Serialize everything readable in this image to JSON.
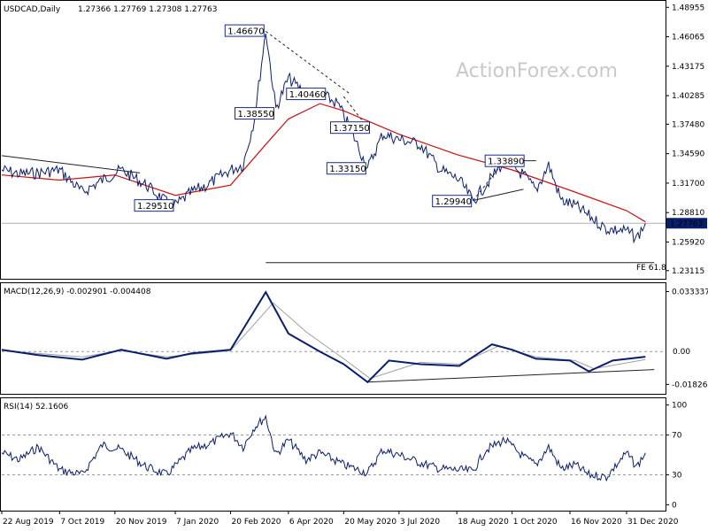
{
  "chart_data": {
    "type": "line",
    "symbol": "USDCAD",
    "timeframe": "Daily",
    "ohlc": {
      "open": "1.27366",
      "high": "1.27769",
      "low": "1.27308",
      "close": "1.27763"
    },
    "watermark": "ActionForex.com",
    "current_price": 1.27763,
    "current_price_label": "1.27763",
    "price_axis": {
      "ylim": [
        1.224,
        1.495
      ],
      "ticks": [
        "1.48955",
        "1.46065",
        "1.43175",
        "1.40285",
        "1.37480",
        "1.34590",
        "1.31700",
        "1.28810",
        "1.25920",
        "1.23115"
      ]
    },
    "x_axis": {
      "start_date": "2019-08-22",
      "end_date": "2021-01-15",
      "labels": [
        {
          "date": "2019-08-22",
          "label": "22 Aug 2019"
        },
        {
          "date": "2019-10-07",
          "label": "7 Oct 2019"
        },
        {
          "date": "2019-11-20",
          "label": "20 Nov 2019"
        },
        {
          "date": "2020-01-07",
          "label": "7 Jan 2020"
        },
        {
          "date": "2020-02-20",
          "label": "20 Feb 2020"
        },
        {
          "date": "2020-04-06",
          "label": "6 Apr 2020"
        },
        {
          "date": "2020-05-20",
          "label": "20 May 2020"
        },
        {
          "date": "2020-07-03",
          "label": "3 Jul 2020"
        },
        {
          "date": "2020-08-18",
          "label": "18 Aug 2020"
        },
        {
          "date": "2020-10-01",
          "label": "1 Oct 2020"
        },
        {
          "date": "2020-11-16",
          "label": "16 Nov 2020"
        },
        {
          "date": "2020-12-31",
          "label": "31 Dec 2020"
        }
      ]
    },
    "price_path": [
      [
        "2019-08-22",
        1.33
      ],
      [
        "2019-09-05",
        1.326
      ],
      [
        "2019-09-20",
        1.327
      ],
      [
        "2019-10-07",
        1.33
      ],
      [
        "2019-10-25",
        1.308
      ],
      [
        "2019-11-10",
        1.32
      ],
      [
        "2019-11-25",
        1.33
      ],
      [
        "2019-12-15",
        1.315
      ],
      [
        "2019-12-31",
        1.298
      ],
      [
        "2020-01-07",
        1.2951
      ],
      [
        "2020-01-20",
        1.308
      ],
      [
        "2020-02-01",
        1.315
      ],
      [
        "2020-02-20",
        1.33
      ],
      [
        "2020-03-01",
        1.335
      ],
      [
        "2020-03-10",
        1.38
      ],
      [
        "2020-03-19",
        1.4667
      ],
      [
        "2020-03-27",
        1.39
      ],
      [
        "2020-04-06",
        1.42
      ],
      [
        "2020-04-20",
        1.4046
      ],
      [
        "2020-05-01",
        1.405
      ],
      [
        "2020-05-15",
        1.395
      ],
      [
        "2020-05-25",
        1.3715
      ],
      [
        "2020-06-08",
        1.3315
      ],
      [
        "2020-06-20",
        1.365
      ],
      [
        "2020-07-03",
        1.36
      ],
      [
        "2020-07-20",
        1.355
      ],
      [
        "2020-08-05",
        1.33
      ],
      [
        "2020-08-20",
        1.32
      ],
      [
        "2020-08-31",
        1.2994
      ],
      [
        "2020-09-10",
        1.315
      ],
      [
        "2020-09-25",
        1.3389
      ],
      [
        "2020-10-10",
        1.325
      ],
      [
        "2020-10-20",
        1.31
      ],
      [
        "2020-10-30",
        1.335
      ],
      [
        "2020-11-09",
        1.3
      ],
      [
        "2020-11-20",
        1.295
      ],
      [
        "2020-12-01",
        1.285
      ],
      [
        "2020-12-15",
        1.272
      ],
      [
        "2020-12-31",
        1.27
      ],
      [
        "2021-01-08",
        1.263
      ],
      [
        "2021-01-15",
        1.2776
      ]
    ],
    "ma_path": [
      [
        "2019-08-22",
        1.325
      ],
      [
        "2019-10-07",
        1.32
      ],
      [
        "2019-11-20",
        1.325
      ],
      [
        "2020-01-07",
        1.305
      ],
      [
        "2020-02-20",
        1.315
      ],
      [
        "2020-03-19",
        1.355
      ],
      [
        "2020-04-06",
        1.38
      ],
      [
        "2020-05-01",
        1.395
      ],
      [
        "2020-05-20",
        1.388
      ],
      [
        "2020-07-03",
        1.365
      ],
      [
        "2020-08-18",
        1.345
      ],
      [
        "2020-10-01",
        1.33
      ],
      [
        "2020-11-16",
        1.31
      ],
      [
        "2020-12-31",
        1.29
      ],
      [
        "2021-01-15",
        1.279
      ]
    ],
    "trendlines": [
      {
        "from": [
          "2019-08-22",
          1.344
        ],
        "to": [
          "2019-12-10",
          1.327
        ]
      },
      {
        "from": [
          "2020-03-19",
          1.466
        ],
        "to": [
          "2020-05-25",
          1.4045
        ],
        "dashed": true
      },
      {
        "from": [
          "2020-05-20",
          1.402
        ],
        "to": [
          "2020-06-08",
          1.3715
        ],
        "dashed": true
      },
      {
        "from": [
          "2020-08-31",
          1.3
        ],
        "to": [
          "2020-10-10",
          1.311
        ]
      },
      {
        "from": [
          "2020-08-31",
          1.3
        ],
        "to": [
          "2020-09-25",
          1.3389
        ],
        "dashed": true
      },
      {
        "from": [
          "2020-09-20",
          1.339
        ],
        "to": [
          "2020-10-20",
          1.339
        ]
      },
      {
        "from": [
          "2020-03-19",
          1.239
        ],
        "to": [
          "2021-01-22",
          1.239
        ]
      }
    ],
    "annotations": [
      {
        "text": "1.46670",
        "date": "2020-03-19",
        "price": 1.4667,
        "side": "left"
      },
      {
        "text": "1.40460",
        "date": "2020-04-20",
        "price": 1.4046,
        "side": "center"
      },
      {
        "text": "1.38550",
        "date": "2020-03-10",
        "price": 1.3855,
        "side": "center"
      },
      {
        "text": "1.37150",
        "date": "2020-05-25",
        "price": 1.3715,
        "side": "center"
      },
      {
        "text": "1.33150",
        "date": "2020-06-08",
        "price": 1.3315,
        "side": "left"
      },
      {
        "text": "1.29510",
        "date": "2020-01-07",
        "price": 1.2951,
        "side": "left"
      },
      {
        "text": "1.29940",
        "date": "2020-08-31",
        "price": 1.2994,
        "side": "left"
      },
      {
        "text": "1.33890",
        "date": "2020-09-25",
        "price": 1.3389,
        "side": "center"
      }
    ],
    "fe_label": "FE 61.8",
    "macd": {
      "title": "MACD(12,26,9) -0.002901 -0.004408",
      "ylim": [
        -0.023,
        0.037
      ],
      "ticks": [
        "0.033337",
        "0.00",
        "-0.018262"
      ],
      "current_label": "0.00",
      "macd_path": [
        [
          "2019-08-22",
          0.001
        ],
        [
          "2019-09-20",
          -0.002
        ],
        [
          "2019-10-25",
          -0.0045
        ],
        [
          "2019-11-25",
          0.001
        ],
        [
          "2019-12-31",
          -0.004
        ],
        [
          "2020-01-20",
          -0.001
        ],
        [
          "2020-02-20",
          0.001
        ],
        [
          "2020-03-19",
          0.033
        ],
        [
          "2020-04-06",
          0.01
        ],
        [
          "2020-05-01",
          0.0
        ],
        [
          "2020-05-20",
          -0.007
        ],
        [
          "2020-06-08",
          -0.017
        ],
        [
          "2020-06-25",
          -0.005
        ],
        [
          "2020-07-20",
          -0.007
        ],
        [
          "2020-08-20",
          -0.008
        ],
        [
          "2020-09-15",
          0.004
        ],
        [
          "2020-10-01",
          0.001
        ],
        [
          "2020-10-20",
          -0.004
        ],
        [
          "2020-11-16",
          -0.005
        ],
        [
          "2020-12-01",
          -0.011
        ],
        [
          "2020-12-20",
          -0.005
        ],
        [
          "2021-01-15",
          -0.0029
        ]
      ],
      "signal_path": [
        [
          "2019-08-22",
          0.0005
        ],
        [
          "2019-10-25",
          -0.003
        ],
        [
          "2019-11-25",
          0.0005
        ],
        [
          "2019-12-31",
          -0.003
        ],
        [
          "2020-02-20",
          0.0005
        ],
        [
          "2020-03-25",
          0.027
        ],
        [
          "2020-04-20",
          0.011
        ],
        [
          "2020-05-20",
          -0.004
        ],
        [
          "2020-06-10",
          -0.015
        ],
        [
          "2020-07-20",
          -0.006
        ],
        [
          "2020-08-20",
          -0.007
        ],
        [
          "2020-09-20",
          0.003
        ],
        [
          "2020-10-20",
          -0.003
        ],
        [
          "2020-11-20",
          -0.005
        ],
        [
          "2020-12-05",
          -0.0095
        ],
        [
          "2021-01-15",
          -0.0044
        ]
      ],
      "trendline": {
        "from": [
          "2020-06-08",
          -0.017
        ],
        "to": [
          "2021-01-22",
          -0.01
        ]
      }
    },
    "rsi": {
      "title": "RSI(14) 52.1606",
      "ylim": [
        -5,
        105
      ],
      "ticks": [
        "100",
        "70",
        "30",
        "0"
      ],
      "levels": [
        70,
        30
      ],
      "path": [
        [
          "2019-08-22",
          52
        ],
        [
          "2019-09-05",
          45
        ],
        [
          "2019-09-20",
          58
        ],
        [
          "2019-10-07",
          35
        ],
        [
          "2019-10-25",
          30
        ],
        [
          "2019-11-10",
          60
        ],
        [
          "2019-11-25",
          55
        ],
        [
          "2019-12-15",
          38
        ],
        [
          "2019-12-31",
          30
        ],
        [
          "2020-01-20",
          55
        ],
        [
          "2020-02-05",
          62
        ],
        [
          "2020-02-20",
          72
        ],
        [
          "2020-03-01",
          58
        ],
        [
          "2020-03-10",
          78
        ],
        [
          "2020-03-19",
          88
        ],
        [
          "2020-03-27",
          50
        ],
        [
          "2020-04-06",
          65
        ],
        [
          "2020-04-20",
          45
        ],
        [
          "2020-05-01",
          52
        ],
        [
          "2020-05-20",
          40
        ],
        [
          "2020-06-08",
          32
        ],
        [
          "2020-06-20",
          55
        ],
        [
          "2020-07-03",
          50
        ],
        [
          "2020-07-20",
          42
        ],
        [
          "2020-08-05",
          36
        ],
        [
          "2020-08-31",
          34
        ],
        [
          "2020-09-10",
          55
        ],
        [
          "2020-09-25",
          65
        ],
        [
          "2020-10-10",
          48
        ],
        [
          "2020-10-20",
          40
        ],
        [
          "2020-10-30",
          58
        ],
        [
          "2020-11-09",
          36
        ],
        [
          "2020-11-20",
          40
        ],
        [
          "2020-12-01",
          30
        ],
        [
          "2020-12-15",
          28
        ],
        [
          "2020-12-31",
          52
        ],
        [
          "2021-01-08",
          38
        ],
        [
          "2021-01-15",
          52
        ]
      ]
    }
  }
}
